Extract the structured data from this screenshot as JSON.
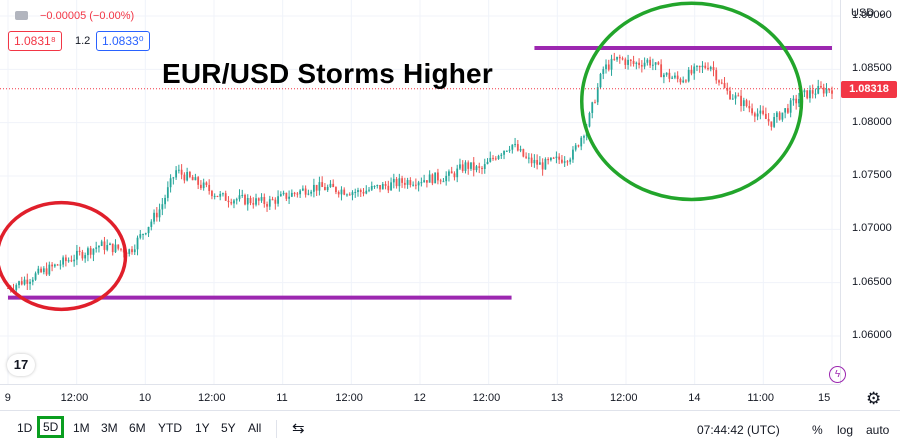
{
  "header": {
    "change_text": "−0.00005 (−0.00%)",
    "sell_price": "1.0831⁸",
    "spread": "1.2",
    "buy_price": "1.0833⁰",
    "title": "EUR/USD Storms Higher"
  },
  "price_axis": {
    "currency": "USD ⌄",
    "last_price_label": "1.08318"
  },
  "colors": {
    "up": "#26a69a",
    "down": "#ef5350",
    "support_resistance": "#9c27b0",
    "red_ellipse": "#e01f2b",
    "green_ellipse": "#22a52b",
    "last_price": "#f23645"
  },
  "bottom_bar": {
    "timeframes": [
      "1D",
      "5D",
      "1M",
      "3M",
      "6M",
      "YTD",
      "1Y",
      "5Y",
      "All"
    ],
    "active_timeframe": "5D",
    "time": "07:44:42 (UTC)",
    "percent": "%",
    "log": "log",
    "auto": "auto"
  },
  "icons": {
    "logo": "tradingview-logo",
    "settings": "gear-icon",
    "compare": "compare-icon",
    "flash": "flash-icon"
  },
  "chart_data": {
    "type": "line",
    "series_style": "candlestick (approximated by close path)",
    "x_ticks": [
      "9",
      "12:00",
      "10",
      "12:00",
      "11",
      "12:00",
      "12",
      "12:00",
      "13",
      "12:00",
      "14",
      "11:00",
      "15"
    ],
    "y_ticks": [
      "1.09000",
      "1.08500",
      "1.08000",
      "1.07500",
      "1.07000",
      "1.06500",
      "1.06000"
    ],
    "ylim": [
      1.0555,
      1.0915
    ],
    "last_price": 1.08318,
    "x": [
      0,
      3,
      6,
      8,
      9,
      10,
      11,
      14,
      17,
      20,
      23,
      26,
      29,
      30,
      31,
      32,
      33,
      34,
      35,
      37,
      38,
      39,
      40,
      41,
      42,
      43,
      44,
      45,
      46,
      47,
      48,
      50,
      52,
      53,
      54
    ],
    "values": [
      1.0645,
      1.0665,
      1.0685,
      1.068,
      1.07,
      1.072,
      1.0755,
      1.073,
      1.0725,
      1.074,
      1.0735,
      1.0745,
      1.075,
      1.076,
      1.0755,
      1.077,
      1.078,
      1.0765,
      1.076,
      1.077,
      1.08,
      1.085,
      1.086,
      1.0855,
      1.0858,
      1.0845,
      1.084,
      1.0848,
      1.0855,
      1.083,
      1.082,
      1.08,
      1.0825,
      1.083,
      1.0832
    ],
    "annotations": [
      {
        "type": "hline",
        "value": 1.0636,
        "x_start": 0,
        "x_end": 33
      },
      {
        "type": "hline",
        "value": 1.087,
        "x_start": 34.5,
        "x_end": 54
      },
      {
        "type": "ellipse",
        "color": "red",
        "cx": 3.5,
        "cy": 1.0675,
        "rx": 4.2,
        "ry": 0.005
      },
      {
        "type": "ellipse",
        "color": "green",
        "cx": 44.8,
        "cy": 1.082,
        "rx": 7.2,
        "ry": 0.0092
      }
    ]
  }
}
